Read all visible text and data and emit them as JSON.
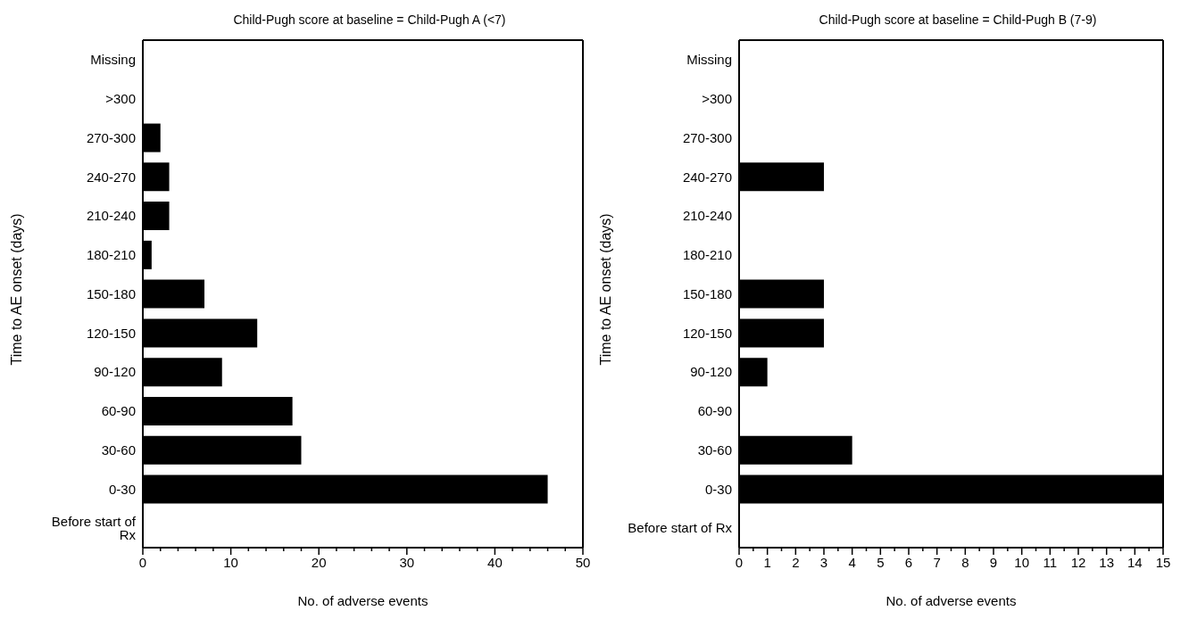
{
  "chart_data": [
    {
      "type": "bar",
      "orientation": "horizontal",
      "title": "Child-Pugh score at baseline = Child-Pugh A (<7)",
      "xlabel": "No. of adverse events",
      "ylabel": "Time to AE onset (days)",
      "categories": [
        "Missing",
        ">300",
        "270-300",
        "240-270",
        "210-240",
        "180-210",
        "150-180",
        "120-150",
        "90-120",
        "60-90",
        "30-60",
        "0-30",
        "Before start of Rx"
      ],
      "values": [
        0,
        0,
        2,
        3,
        3,
        1,
        7,
        13,
        9,
        17,
        18,
        46,
        0
      ],
      "color": "#000000",
      "xlim": [
        0,
        50
      ],
      "xticks": [
        0,
        {
          "value": 2,
          "label": null
        },
        {
          "value": 4,
          "label": null
        },
        {
          "value": 6,
          "label": null
        },
        {
          "value": 8,
          "label": null
        },
        10,
        {
          "value": 12,
          "label": null
        },
        {
          "value": 14,
          "label": null
        },
        {
          "value": 16,
          "label": null
        },
        {
          "value": 18,
          "label": null
        },
        20,
        {
          "value": 22,
          "label": null
        },
        {
          "value": 24,
          "label": null
        },
        {
          "value": 26,
          "label": null
        },
        {
          "value": 28,
          "label": null
        },
        30,
        {
          "value": 32,
          "label": null
        },
        {
          "value": 34,
          "label": null
        },
        {
          "value": 36,
          "label": null
        },
        {
          "value": 38,
          "label": null
        },
        40,
        {
          "value": 42,
          "label": null
        },
        {
          "value": 44,
          "label": null
        },
        {
          "value": 46,
          "label": null
        },
        {
          "value": 48,
          "label": null
        },
        50
      ],
      "grid": false,
      "legend": false
    },
    {
      "type": "bar",
      "orientation": "horizontal",
      "title": "Child-Pugh score at baseline = Child-Pugh B (7-9)",
      "xlabel": "No. of adverse events",
      "ylabel": "Time to AE onset (days)",
      "categories": [
        "Missing",
        ">300",
        "270-300",
        "240-270",
        "210-240",
        "180-210",
        "150-180",
        "120-150",
        "90-120",
        "60-90",
        "30-60",
        "0-30",
        "Before start of Rx"
      ],
      "values": [
        0,
        0,
        0,
        3,
        0,
        0,
        3,
        3,
        1,
        0,
        4,
        15,
        0
      ],
      "color": "#000000",
      "xlim": [
        0,
        15
      ],
      "xticks": [
        0,
        {
          "value": 0.5,
          "label": null
        },
        1,
        {
          "value": 1.5,
          "label": null
        },
        2,
        {
          "value": 2.5,
          "label": null
        },
        3,
        {
          "value": 3.5,
          "label": null
        },
        4,
        {
          "value": 4.5,
          "label": null
        },
        5,
        {
          "value": 5.5,
          "label": null
        },
        6,
        {
          "value": 6.5,
          "label": null
        },
        7,
        {
          "value": 7.5,
          "label": null
        },
        8,
        {
          "value": 8.5,
          "label": null
        },
        9,
        {
          "value": 9.5,
          "label": null
        },
        10,
        {
          "value": 10.5,
          "label": null
        },
        11,
        {
          "value": 11.5,
          "label": null
        },
        12,
        {
          "value": 12.5,
          "label": null
        },
        13,
        {
          "value": 13.5,
          "label": null
        },
        14,
        {
          "value": 14.5,
          "label": null
        },
        15
      ],
      "grid": false,
      "legend": false
    }
  ]
}
